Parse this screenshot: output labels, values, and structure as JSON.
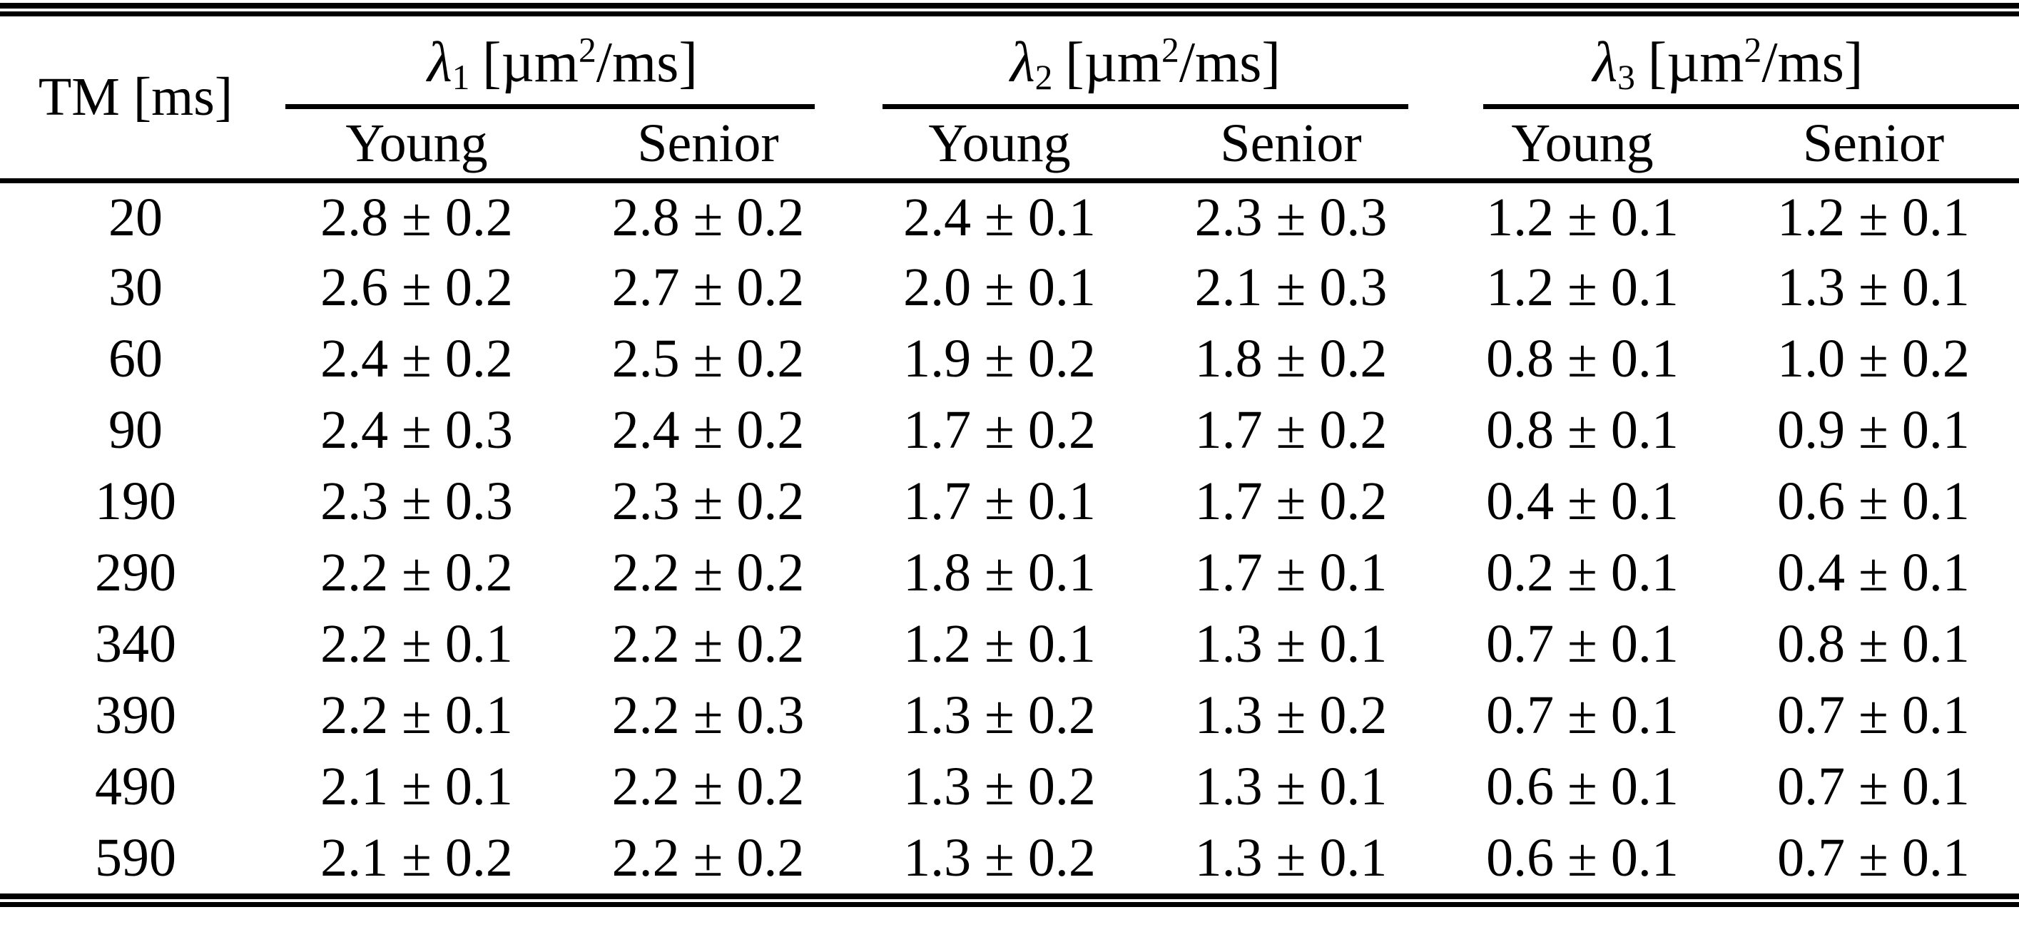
{
  "colors": {
    "text": "#000000",
    "rule": "#000000",
    "background": "#ffffff"
  },
  "table": {
    "tm_header": "TM [ms]",
    "subheaders": [
      "Young",
      "Senior"
    ],
    "groups": [
      {
        "symbol": "λ",
        "sub": "1",
        "unit_pre": "[µm",
        "unit_sup": "2",
        "unit_post": "/ms]"
      },
      {
        "symbol": "λ",
        "sub": "2",
        "unit_pre": "[µm",
        "unit_sup": "2",
        "unit_post": "/ms]"
      },
      {
        "symbol": "λ",
        "sub": "3",
        "unit_pre": "[µm",
        "unit_sup": "2",
        "unit_post": "/ms]"
      }
    ],
    "rows": [
      {
        "tm": "20",
        "values": [
          "2.8 ± 0.2",
          "2.8 ± 0.2",
          "2.4 ± 0.1",
          "2.3 ± 0.3",
          "1.2 ± 0.1",
          "1.2 ± 0.1"
        ]
      },
      {
        "tm": "30",
        "values": [
          "2.6 ± 0.2",
          "2.7 ± 0.2",
          "2.0 ± 0.1",
          "2.1 ± 0.3",
          "1.2 ± 0.1",
          "1.3 ± 0.1"
        ]
      },
      {
        "tm": "60",
        "values": [
          "2.4 ± 0.2",
          "2.5 ± 0.2",
          "1.9 ± 0.2",
          "1.8 ± 0.2",
          "0.8 ± 0.1",
          "1.0 ± 0.2"
        ]
      },
      {
        "tm": "90",
        "values": [
          "2.4 ± 0.3",
          "2.4 ± 0.2",
          "1.7 ± 0.2",
          "1.7 ± 0.2",
          "0.8 ± 0.1",
          "0.9 ± 0.1"
        ]
      },
      {
        "tm": "190",
        "values": [
          "2.3 ± 0.3",
          "2.3 ± 0.2",
          "1.7 ± 0.1",
          "1.7 ± 0.2",
          "0.4 ± 0.1",
          "0.6 ± 0.1"
        ]
      },
      {
        "tm": "290",
        "values": [
          "2.2 ± 0.2",
          "2.2 ± 0.2",
          "1.8 ± 0.1",
          "1.7 ± 0.1",
          "0.2 ± 0.1",
          "0.4 ± 0.1"
        ]
      },
      {
        "tm": "340",
        "values": [
          "2.2 ± 0.1",
          "2.2 ± 0.2",
          "1.2 ± 0.1",
          "1.3 ± 0.1",
          "0.7 ± 0.1",
          "0.8 ± 0.1"
        ]
      },
      {
        "tm": "390",
        "values": [
          "2.2 ± 0.1",
          "2.2 ± 0.3",
          "1.3 ± 0.2",
          "1.3 ± 0.2",
          "0.7 ± 0.1",
          "0.7 ± 0.1"
        ]
      },
      {
        "tm": "490",
        "values": [
          "2.1 ± 0.1",
          "2.2 ± 0.2",
          "1.3 ± 0.2",
          "1.3 ± 0.1",
          "0.6 ± 0.1",
          "0.7 ± 0.1"
        ]
      },
      {
        "tm": "590",
        "values": [
          "2.1 ± 0.2",
          "2.2 ± 0.2",
          "1.3 ± 0.2",
          "1.3 ± 0.1",
          "0.6 ± 0.1",
          "0.7 ± 0.1"
        ]
      }
    ]
  }
}
